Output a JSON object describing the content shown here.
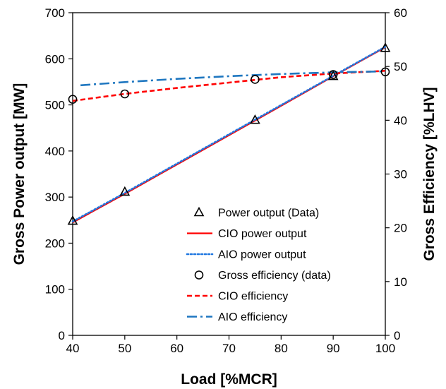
{
  "chart_data": {
    "type": "line",
    "xlabel": "Load [%MCR]",
    "ylabel_left": "Gross Power output [MW]",
    "ylabel_right": "Gross Efficiency [%LHV]",
    "xlim": [
      40,
      100
    ],
    "ylim_left": [
      0,
      700
    ],
    "ylim_right": [
      0,
      60
    ],
    "x_ticks": [
      40,
      50,
      60,
      70,
      80,
      90,
      100
    ],
    "y_left_ticks": [
      0,
      100,
      200,
      300,
      400,
      500,
      600,
      700
    ],
    "y_right_ticks": [
      0,
      10,
      20,
      30,
      40,
      50,
      60
    ],
    "grid": false,
    "legend_position": "bottom-right",
    "series": [
      {
        "name": "Power output (Data)",
        "axis": "left",
        "style": "markers",
        "marker": "triangle",
        "color": "#000000",
        "x": [
          40,
          50,
          75,
          90,
          100
        ],
        "y": [
          248,
          311,
          467,
          562,
          623
        ]
      },
      {
        "name": "CIO power output",
        "axis": "left",
        "style": "solid",
        "color": "#ff0000",
        "x": [
          40,
          50,
          75,
          90,
          100
        ],
        "y": [
          245,
          307,
          466,
          562,
          625
        ]
      },
      {
        "name": "AIO power output",
        "axis": "left",
        "style": "dotted",
        "color": "#1f77e0",
        "x": [
          40,
          50,
          75,
          90,
          100
        ],
        "y": [
          247,
          309,
          468,
          563,
          626
        ]
      },
      {
        "name": "Gross efficiency (data)",
        "axis": "right",
        "style": "markers",
        "marker": "circle",
        "color": "#000000",
        "x": [
          40,
          50,
          75,
          90,
          100
        ],
        "y": [
          43.9,
          44.9,
          47.6,
          48.5,
          49.0
        ]
      },
      {
        "name": "CIO efficiency",
        "axis": "right",
        "style": "dashed",
        "color": "#ff0000",
        "x": [
          40,
          50,
          60,
          70,
          75,
          80,
          90,
          100
        ],
        "y": [
          43.6,
          44.9,
          46.0,
          47.0,
          47.5,
          48.0,
          48.7,
          49.2
        ]
      },
      {
        "name": "AIO efficiency",
        "axis": "right",
        "style": "dashdot",
        "color": "#1f77c0",
        "x": [
          41.5,
          50,
          60,
          70,
          80,
          90,
          100
        ],
        "y": [
          46.5,
          47.1,
          47.7,
          48.2,
          48.6,
          48.9,
          49.1
        ]
      }
    ]
  }
}
